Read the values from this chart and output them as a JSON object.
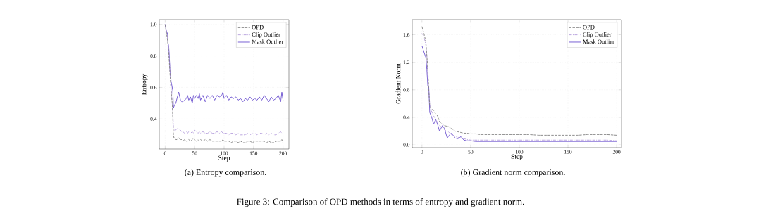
{
  "chart_data": [
    {
      "type": "line",
      "title": "(a) Entropy comparison.",
      "xlabel": "Step",
      "ylabel": "Entropy",
      "annotations": [
        "Figure 3: Comparison of OPD methods in terms of entropy and gradient norm."
      ],
      "x": [
        0,
        2,
        4,
        5,
        6,
        7,
        8,
        9,
        10,
        11,
        12,
        13,
        14,
        15,
        16,
        18,
        20,
        23,
        26,
        28,
        30,
        33,
        36,
        38,
        40,
        43,
        46,
        48,
        50,
        53,
        56,
        58,
        60,
        64,
        68,
        72,
        76,
        80,
        84,
        88,
        92,
        96,
        98,
        100,
        104,
        108,
        112,
        116,
        120,
        124,
        128,
        132,
        136,
        140,
        144,
        148,
        152,
        156,
        160,
        164,
        168,
        172,
        176,
        180,
        184,
        188,
        192,
        196,
        198,
        200
      ],
      "series": [
        {
          "name": "OPD",
          "color": "#808080",
          "line_style": "dashed",
          "values": [
            1.0,
            0.95,
            0.9,
            0.86,
            0.82,
            0.76,
            0.7,
            0.64,
            0.58,
            0.54,
            0.5,
            0.4,
            0.3,
            0.28,
            0.28,
            0.27,
            0.27,
            0.28,
            0.27,
            0.27,
            0.26,
            0.27,
            0.26,
            0.26,
            0.27,
            0.26,
            0.27,
            0.28,
            0.27,
            0.26,
            0.27,
            0.26,
            0.27,
            0.26,
            0.27,
            0.26,
            0.27,
            0.26,
            0.26,
            0.26,
            0.26,
            0.26,
            0.27,
            0.26,
            0.26,
            0.26,
            0.25,
            0.26,
            0.26,
            0.25,
            0.26,
            0.25,
            0.25,
            0.26,
            0.26,
            0.25,
            0.26,
            0.26,
            0.26,
            0.26,
            0.26,
            0.25,
            0.26,
            0.25,
            0.25,
            0.26,
            0.26,
            0.26,
            0.27,
            0.25
          ]
        },
        {
          "name": "Clip Outlier",
          "color": "#b39ddb",
          "line_style": "dashdot",
          "values": [
            1.0,
            0.96,
            0.92,
            0.88,
            0.85,
            0.8,
            0.72,
            0.66,
            0.6,
            0.55,
            0.5,
            0.45,
            0.34,
            0.33,
            0.33,
            0.33,
            0.34,
            0.34,
            0.33,
            0.32,
            0.32,
            0.31,
            0.32,
            0.31,
            0.32,
            0.31,
            0.32,
            0.31,
            0.33,
            0.32,
            0.31,
            0.32,
            0.31,
            0.32,
            0.31,
            0.31,
            0.32,
            0.31,
            0.31,
            0.32,
            0.31,
            0.32,
            0.31,
            0.31,
            0.31,
            0.3,
            0.31,
            0.31,
            0.3,
            0.31,
            0.3,
            0.3,
            0.3,
            0.31,
            0.3,
            0.31,
            0.31,
            0.3,
            0.31,
            0.31,
            0.3,
            0.31,
            0.3,
            0.31,
            0.3,
            0.3,
            0.31,
            0.32,
            0.31,
            0.3
          ]
        },
        {
          "name": "Mask Outlier",
          "color": "#6a4fcf",
          "line_style": "solid",
          "values": [
            1.0,
            0.96,
            0.94,
            0.88,
            0.86,
            0.8,
            0.72,
            0.68,
            0.64,
            0.62,
            0.6,
            0.58,
            0.47,
            0.48,
            0.49,
            0.5,
            0.53,
            0.57,
            0.52,
            0.51,
            0.51,
            0.52,
            0.53,
            0.55,
            0.52,
            0.54,
            0.5,
            0.55,
            0.53,
            0.55,
            0.53,
            0.56,
            0.52,
            0.55,
            0.51,
            0.55,
            0.53,
            0.55,
            0.52,
            0.55,
            0.54,
            0.55,
            0.57,
            0.53,
            0.55,
            0.52,
            0.54,
            0.53,
            0.54,
            0.52,
            0.53,
            0.51,
            0.53,
            0.52,
            0.54,
            0.52,
            0.53,
            0.52,
            0.54,
            0.52,
            0.55,
            0.53,
            0.51,
            0.54,
            0.52,
            0.53,
            0.55,
            0.51,
            0.57,
            0.52
          ]
        }
      ],
      "xlim": [
        -10,
        210
      ],
      "ylim": [
        0.21,
        1.03
      ],
      "xticks": [
        0,
        50,
        100,
        150,
        200
      ],
      "yticks": [
        0.4,
        0.6,
        0.8,
        {
          "value": 1.0,
          "label": "1.0"
        }
      ],
      "grid": true,
      "legend": "top right"
    },
    {
      "type": "line",
      "title": "(b) Gradient norm comparison.",
      "xlabel": "Step",
      "ylabel": "Gradient Norm",
      "x": [
        0,
        2,
        4,
        5,
        6,
        7,
        8,
        10,
        12,
        14,
        16,
        18,
        21,
        23,
        26,
        28,
        30,
        32,
        34,
        37,
        40,
        43,
        46,
        50,
        55,
        60,
        70,
        80,
        90,
        100,
        110,
        120,
        130,
        140,
        150,
        160,
        170,
        180,
        190,
        200
      ],
      "series": [
        {
          "name": "OPD",
          "color": "#808080",
          "line_style": "dashed",
          "values": [
            1.72,
            1.62,
            1.5,
            1.3,
            1.1,
            0.8,
            0.56,
            0.53,
            0.5,
            0.45,
            0.42,
            0.34,
            0.3,
            0.28,
            0.27,
            0.26,
            0.24,
            0.22,
            0.2,
            0.19,
            0.18,
            0.17,
            0.17,
            0.16,
            0.16,
            0.15,
            0.15,
            0.15,
            0.15,
            0.15,
            0.15,
            0.14,
            0.14,
            0.14,
            0.14,
            0.14,
            0.15,
            0.15,
            0.15,
            0.14
          ]
        },
        {
          "name": "Clip Outlier",
          "color": "#b39ddb",
          "line_style": "dashdot",
          "values": [
            1.62,
            1.58,
            1.45,
            1.3,
            1.0,
            0.8,
            0.6,
            0.48,
            0.42,
            0.38,
            0.32,
            0.28,
            0.25,
            0.22,
            0.2,
            0.18,
            0.15,
            0.14,
            0.12,
            0.11,
            0.1,
            0.09,
            0.08,
            0.07,
            0.07,
            0.07,
            0.07,
            0.07,
            0.07,
            0.07,
            0.07,
            0.07,
            0.07,
            0.07,
            0.07,
            0.07,
            0.07,
            0.07,
            0.07,
            0.06
          ]
        },
        {
          "name": "Mask Outlier",
          "color": "#6a4fcf",
          "line_style": "solid",
          "values": [
            1.44,
            1.35,
            1.27,
            1.1,
            0.86,
            0.84,
            0.47,
            0.4,
            0.3,
            0.37,
            0.3,
            0.2,
            0.28,
            0.24,
            0.1,
            0.14,
            0.17,
            0.14,
            0.1,
            0.09,
            0.12,
            0.07,
            0.06,
            0.06,
            0.05,
            0.05,
            0.05,
            0.05,
            0.05,
            0.05,
            0.05,
            0.05,
            0.05,
            0.05,
            0.05,
            0.05,
            0.05,
            0.05,
            0.05,
            0.05
          ]
        }
      ],
      "xlim": [
        -10,
        205
      ],
      "ylim": [
        -0.04,
        1.82
      ],
      "xticks": [
        0,
        50,
        100,
        150,
        200
      ],
      "yticks": [
        {
          "value": 0.0,
          "label": "0.0"
        },
        0.4,
        0.8,
        1.2,
        1.6
      ],
      "grid": true,
      "legend": "top right"
    }
  ]
}
